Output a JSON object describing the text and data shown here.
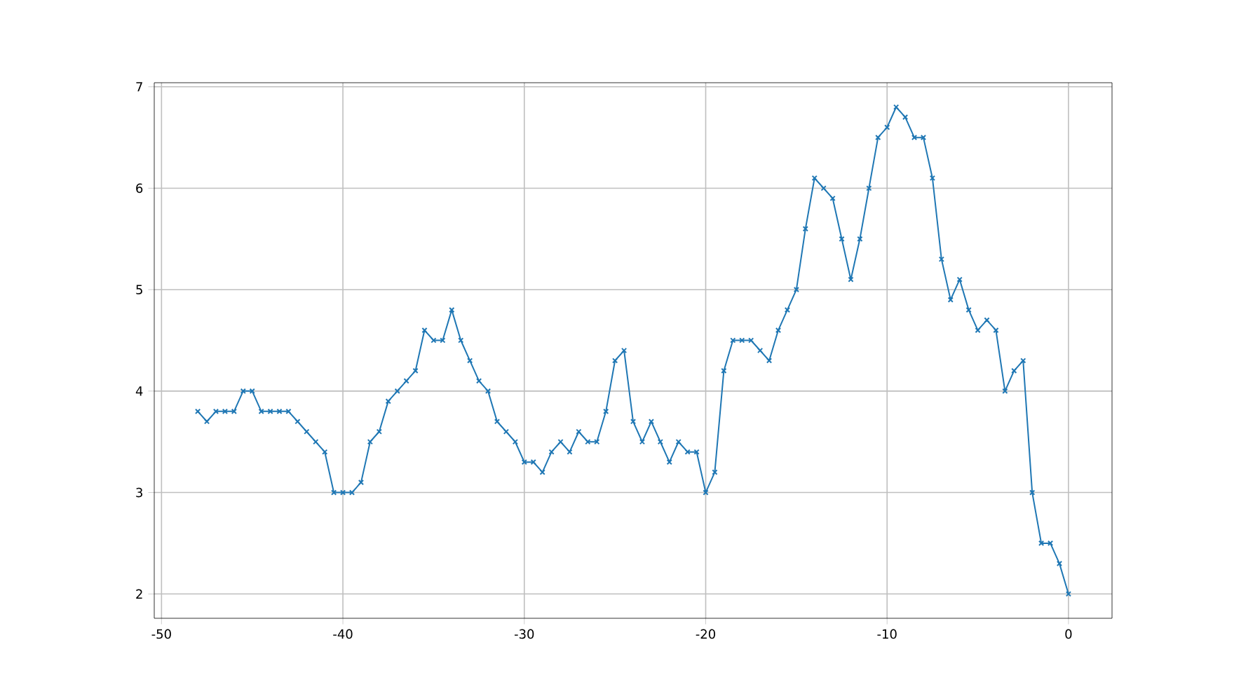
{
  "chart_data": {
    "type": "line",
    "x": [
      -48,
      -47.5,
      -47,
      -46.5,
      -46,
      -45.5,
      -45,
      -44.5,
      -44,
      -43.5,
      -43,
      -42.5,
      -42,
      -41.5,
      -41,
      -40.5,
      -40,
      -39.5,
      -39,
      -38.5,
      -38,
      -37.5,
      -37,
      -36.5,
      -36,
      -35.5,
      -35,
      -34.5,
      -34,
      -33.5,
      -33,
      -32.5,
      -32,
      -31.5,
      -31,
      -30.5,
      -30,
      -29.5,
      -29,
      -28.5,
      -28,
      -27.5,
      -27,
      -26.5,
      -26,
      -25.5,
      -25,
      -24.5,
      -24,
      -23.5,
      -23,
      -22.5,
      -22,
      -21.5,
      -21,
      -20.5,
      -20,
      -19.5,
      -19,
      -18.5,
      -18,
      -17.5,
      -17,
      -16.5,
      -16,
      -15.5,
      -15,
      -14.5,
      -14,
      -13.5,
      -13,
      -12.5,
      -12,
      -11.5,
      -11,
      -10.5,
      -10,
      -9.5,
      -9,
      -8.5,
      -8,
      -7.5,
      -7,
      -6.5,
      -6,
      -5.5,
      -5,
      -4.5,
      -4,
      -3.5,
      -3,
      -2.5,
      -2,
      -1.5,
      -1,
      -0.5,
      0
    ],
    "series": [
      {
        "color": "#1f77b4",
        "values": [
          3.8,
          3.7,
          3.8,
          3.8,
          3.8,
          4.0,
          4.0,
          3.8,
          3.8,
          3.8,
          3.8,
          3.7,
          3.6,
          3.5,
          3.4,
          3.0,
          3.0,
          3.0,
          3.1,
          3.5,
          3.6,
          3.9,
          4.0,
          4.1,
          4.2,
          4.6,
          4.5,
          4.5,
          4.8,
          4.5,
          4.3,
          4.1,
          4.0,
          3.7,
          3.6,
          3.5,
          3.3,
          3.3,
          3.2,
          3.4,
          3.5,
          3.4,
          3.6,
          3.5,
          3.5,
          3.8,
          4.3,
          4.4,
          3.7,
          3.5,
          3.7,
          3.5,
          3.3,
          3.5,
          3.4,
          3.4,
          3.0,
          3.2,
          4.2,
          4.5,
          4.5,
          4.5,
          4.4,
          4.3,
          4.6,
          4.8,
          5.0,
          5.6,
          6.1,
          6.0,
          5.9,
          5.5,
          5.1,
          5.5,
          6.0,
          6.5,
          6.6,
          6.8,
          6.7,
          6.5,
          6.5,
          6.1,
          5.3,
          4.9,
          5.1,
          4.8,
          4.6,
          4.7,
          4.6,
          4.0,
          4.2,
          4.3,
          3.0,
          2.5,
          2.5,
          2.3,
          2.0
        ]
      }
    ],
    "xlim": [
      -50.4,
      2.4
    ],
    "ylim": [
      1.76,
      7.04
    ],
    "xticks": [
      -50,
      -40,
      -30,
      -20,
      -10,
      0
    ],
    "yticks": [
      2,
      3,
      4,
      5,
      6,
      7
    ],
    "grid": true,
    "marker": "cross",
    "line_style": "solid"
  }
}
